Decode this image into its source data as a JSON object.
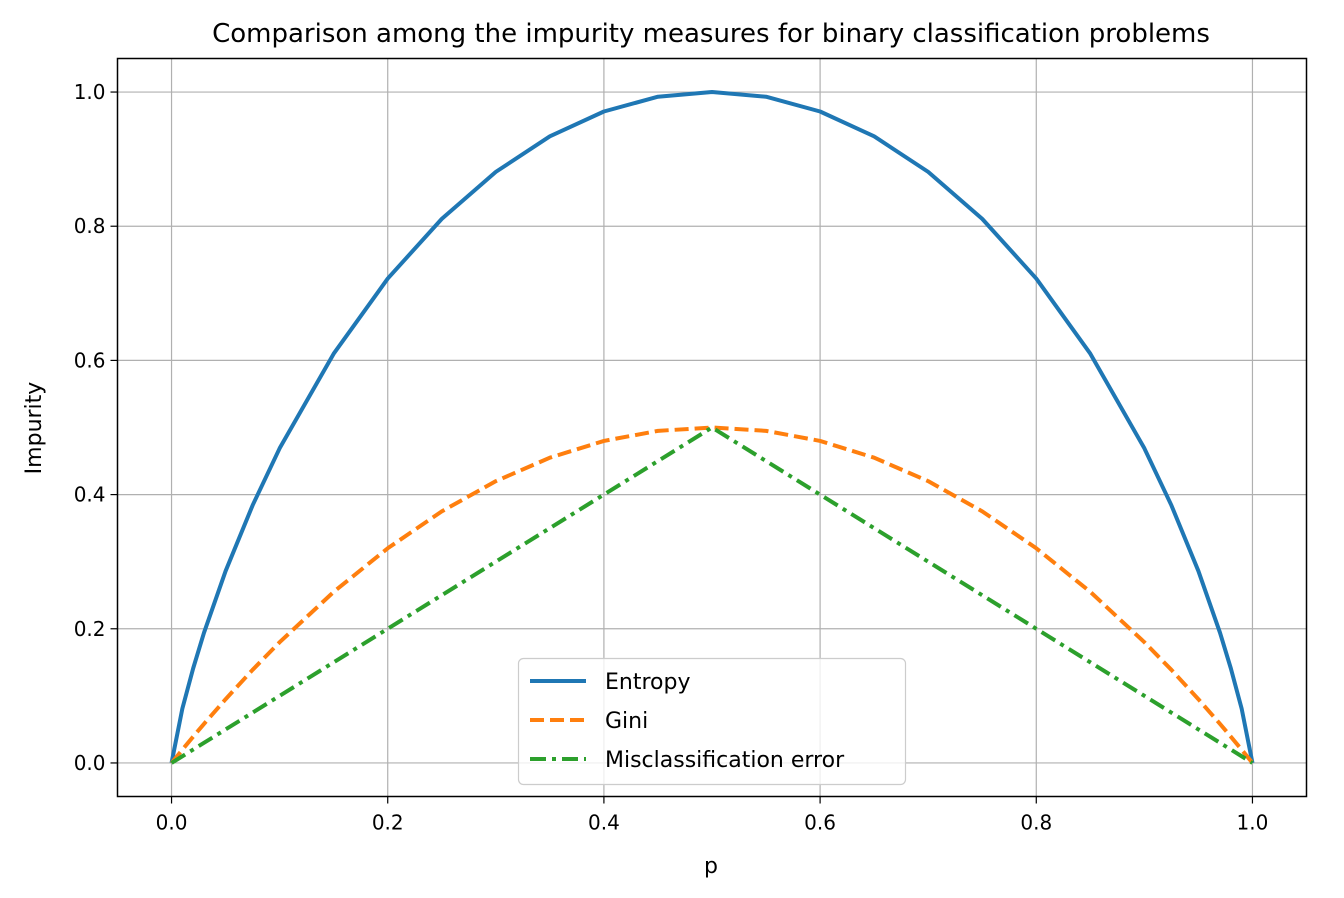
{
  "chart_data": {
    "type": "line",
    "title": "Comparison among the impurity measures for binary classification problems",
    "xlabel": "p",
    "ylabel": "Impurity",
    "xlim": [
      -0.05,
      1.05
    ],
    "ylim": [
      -0.05,
      1.05
    ],
    "x_ticks": [
      "0.0",
      "0.2",
      "0.4",
      "0.6",
      "0.8",
      "1.0"
    ],
    "y_ticks": [
      "0.0",
      "0.2",
      "0.4",
      "0.6",
      "0.8",
      "1.0"
    ],
    "grid": true,
    "legend_position": "lower center",
    "x": [
      0.0,
      0.01,
      0.02,
      0.03,
      0.05,
      0.075,
      0.1,
      0.15,
      0.2,
      0.25,
      0.3,
      0.35,
      0.4,
      0.45,
      0.5,
      0.55,
      0.6,
      0.65,
      0.7,
      0.75,
      0.8,
      0.85,
      0.9,
      0.925,
      0.95,
      0.97,
      0.98,
      0.99,
      1.0
    ],
    "series": [
      {
        "name": "Entropy",
        "color": "#1f77b4",
        "style": "solid",
        "values": [
          0.0,
          0.081,
          0.141,
          0.194,
          0.286,
          0.384,
          0.469,
          0.61,
          0.722,
          0.811,
          0.881,
          0.934,
          0.971,
          0.993,
          1.0,
          0.993,
          0.971,
          0.934,
          0.881,
          0.811,
          0.722,
          0.61,
          0.469,
          0.384,
          0.286,
          0.194,
          0.141,
          0.081,
          0.0
        ]
      },
      {
        "name": "Gini",
        "color": "#ff7f0e",
        "style": "dashed",
        "values": [
          0.0,
          0.0198,
          0.0392,
          0.0582,
          0.095,
          0.1388,
          0.18,
          0.255,
          0.32,
          0.375,
          0.42,
          0.455,
          0.48,
          0.495,
          0.5,
          0.495,
          0.48,
          0.455,
          0.42,
          0.375,
          0.32,
          0.255,
          0.18,
          0.1388,
          0.095,
          0.0582,
          0.0392,
          0.0198,
          0.0
        ]
      },
      {
        "name": "Misclassification error",
        "color": "#2ca02c",
        "style": "dashdot",
        "values": [
          0.0,
          0.01,
          0.02,
          0.03,
          0.05,
          0.075,
          0.1,
          0.15,
          0.2,
          0.25,
          0.3,
          0.35,
          0.4,
          0.45,
          0.5,
          0.45,
          0.4,
          0.35,
          0.3,
          0.25,
          0.2,
          0.15,
          0.1,
          0.075,
          0.05,
          0.03,
          0.02,
          0.01,
          0.0
        ]
      }
    ]
  }
}
